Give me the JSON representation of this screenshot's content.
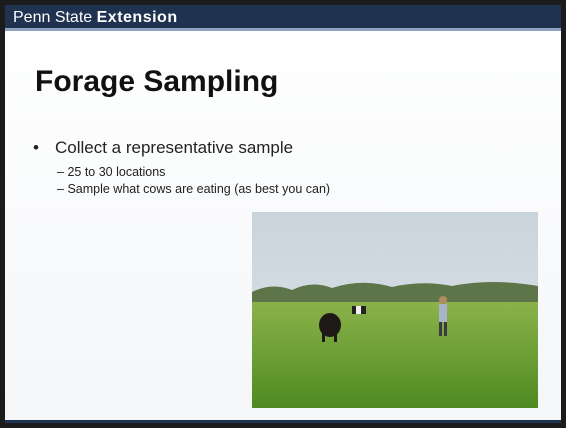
{
  "header": {
    "brand": "Penn State",
    "brand_bold": "Extension"
  },
  "title": "Forage Sampling",
  "bullets": [
    {
      "text": "Collect a representative sample",
      "sub": [
        "25 to 30 locations",
        "Sample what cows are eating (as best you can)"
      ]
    }
  ]
}
